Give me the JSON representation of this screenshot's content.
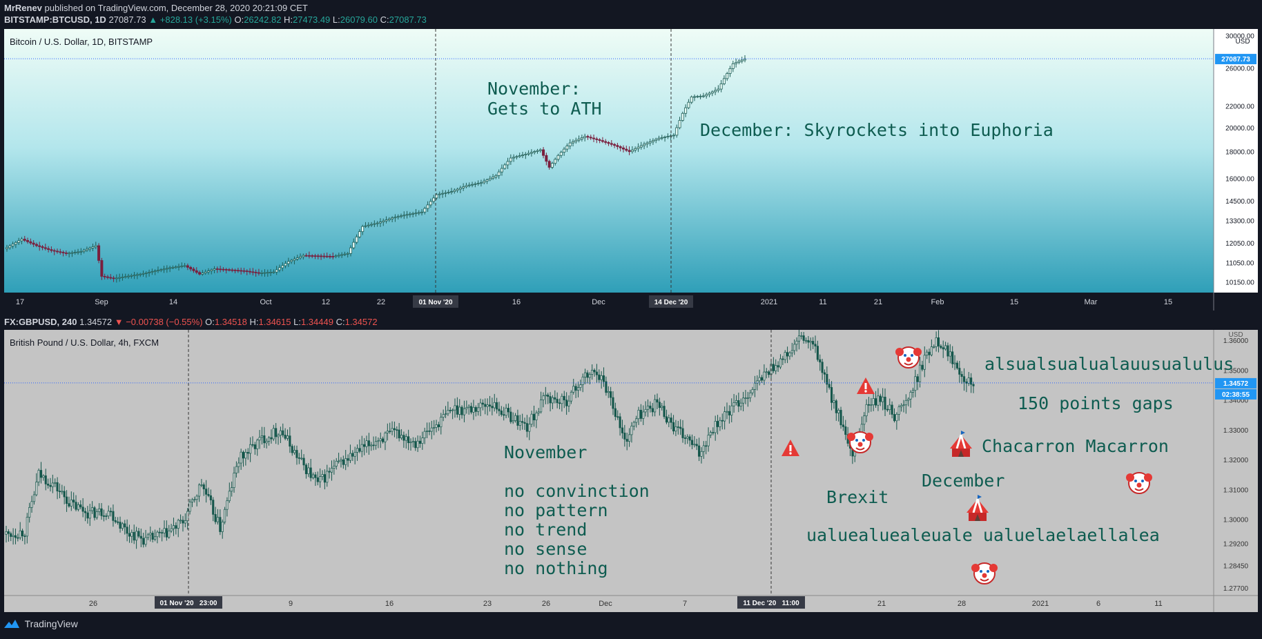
{
  "publisher": {
    "name": "MrRenev",
    "text": "published on TradingView.com, December 28, 2020 20:21:09 CET"
  },
  "btc": {
    "symbol": "BITSTAMP:BTCUSD, 1D",
    "price": "27087.73",
    "change": "▲ +828.13 (+3.15%)",
    "ohlc": {
      "o": "26242.82",
      "h": "27473.49",
      "l": "26079.60",
      "c": "27087.73"
    },
    "title": "Bitcoin / U.S. Dollar, 1D, BITSTAMP",
    "currency": "USD",
    "last_price_label": "27087.73",
    "annotations": [
      "November:",
      "Gets to ATH",
      "December: Skyrockets into Euphoria"
    ],
    "crosshair_labels": [
      "01 Nov '20",
      "14 Dec '20"
    ]
  },
  "gbp": {
    "symbol": "FX:GBPUSD, 240",
    "price": "1.34572",
    "change": "▼ −0.00738 (−0.55%)",
    "ohlc": {
      "o": "1.34518",
      "h": "1.34615",
      "l": "1.34449",
      "c": "1.34572"
    },
    "title": "British Pound / U.S. Dollar, 4h, FXCM",
    "currency": "USD",
    "last_price_label": "1.34572",
    "countdown_label": "02:38:55",
    "annotations": [
      "alsualsualualauusualulus",
      "150 points gaps",
      "Chacarron Macarron",
      "December",
      "Brexit",
      "ualuealuealeuale ualuelaelaellalea",
      "November",
      "no convinction",
      "no pattern",
      "no trend",
      "no sense",
      "no nothing"
    ],
    "crosshair_labels": [
      "01 Nov '20   23:00",
      "11 Dec '20   11:00"
    ]
  },
  "branding": "TradingView",
  "colors": {
    "up": "#26a69a",
    "down": "#ef5350",
    "btc_candle_up": "#1e5c55",
    "btc_candle_down": "#7a1f3d",
    "gbp_candle": "#14564b",
    "annotation": "#0e5c50"
  },
  "chart_data": [
    {
      "type": "candlestick",
      "title": "Bitcoin / U.S. Dollar, 1D, BITSTAMP",
      "y_scale": "log",
      "ylim": [
        9800,
        30500
      ],
      "y_ticks": [
        10150,
        11050,
        12050,
        13300,
        14500,
        16000,
        18000,
        20000,
        22000,
        26000,
        30000
      ],
      "y_tick_labels": [
        "10150.00",
        "11050.00",
        "12050.00",
        "13300.00",
        "14500.00",
        "16000.00",
        "18000.00",
        "20000.00",
        "22000.00",
        "26000.00",
        "30000.00"
      ],
      "x_tick_labels": [
        "17",
        "Sep",
        "14",
        "Oct",
        "12",
        "22",
        "16",
        "Dec",
        "2021",
        "11",
        "21",
        "Feb",
        "15",
        "Mar",
        "15"
      ],
      "close_path": [
        [
          0,
          11800
        ],
        [
          5,
          12250
        ],
        [
          10,
          11900
        ],
        [
          15,
          11650
        ],
        [
          20,
          11500
        ],
        [
          25,
          11600
        ],
        [
          30,
          11900
        ],
        [
          32,
          10400
        ],
        [
          36,
          10300
        ],
        [
          45,
          10500
        ],
        [
          55,
          10800
        ],
        [
          60,
          10900
        ],
        [
          65,
          10500
        ],
        [
          70,
          10750
        ],
        [
          80,
          10650
        ],
        [
          85,
          10550
        ],
        [
          90,
          10600
        ],
        [
          95,
          11100
        ],
        [
          100,
          11400
        ],
        [
          110,
          11350
        ],
        [
          115,
          11500
        ],
        [
          120,
          12950
        ],
        [
          125,
          13150
        ],
        [
          130,
          13450
        ],
        [
          135,
          13650
        ],
        [
          140,
          13800
        ],
        [
          145,
          14900
        ],
        [
          150,
          15100
        ],
        [
          155,
          15500
        ],
        [
          160,
          15700
        ],
        [
          165,
          16200
        ],
        [
          170,
          17500
        ],
        [
          175,
          17800
        ],
        [
          180,
          18150
        ],
        [
          183,
          16800
        ],
        [
          186,
          17700
        ],
        [
          190,
          18700
        ],
        [
          195,
          19250
        ],
        [
          200,
          18900
        ],
        [
          205,
          18500
        ],
        [
          210,
          18000
        ],
        [
          215,
          18600
        ],
        [
          220,
          19100
        ],
        [
          225,
          19350
        ],
        [
          228,
          21300
        ],
        [
          231,
          22900
        ],
        [
          235,
          23000
        ],
        [
          240,
          23700
        ],
        [
          245,
          26500
        ],
        [
          249,
          27087.73
        ]
      ],
      "last": 27087.73,
      "annotations": [
        "November: Gets to ATH",
        "December: Skyrockets into Euphoria"
      ]
    },
    {
      "type": "candlestick",
      "title": "British Pound / U.S. Dollar, 4h, FXCM",
      "ylim": [
        1.2745,
        1.3635
      ],
      "y_ticks": [
        1.277,
        1.2845,
        1.292,
        1.3,
        1.31,
        1.32,
        1.33,
        1.34,
        1.35,
        1.36
      ],
      "y_tick_labels": [
        "1.27700",
        "1.28450",
        "1.29200",
        "1.30000",
        "1.31000",
        "1.32000",
        "1.33000",
        "1.34000",
        "1.35000",
        "1.36000"
      ],
      "x_tick_labels": [
        "26",
        "9",
        "16",
        "23",
        "26",
        "Dec",
        "7",
        "21",
        "28",
        "2021",
        "6",
        "11"
      ],
      "close_path": [
        [
          0,
          1.295
        ],
        [
          8,
          1.296
        ],
        [
          14,
          1.315
        ],
        [
          20,
          1.312
        ],
        [
          28,
          1.305
        ],
        [
          36,
          1.302
        ],
        [
          44,
          1.303
        ],
        [
          52,
          1.296
        ],
        [
          60,
          1.293
        ],
        [
          68,
          1.295
        ],
        [
          76,
          1.299
        ],
        [
          84,
          1.312
        ],
        [
          92,
          1.297
        ],
        [
          100,
          1.32
        ],
        [
          110,
          1.327
        ],
        [
          118,
          1.33
        ],
        [
          126,
          1.32
        ],
        [
          134,
          1.312
        ],
        [
          142,
          1.318
        ],
        [
          150,
          1.322
        ],
        [
          160,
          1.327
        ],
        [
          168,
          1.329
        ],
        [
          176,
          1.326
        ],
        [
          184,
          1.331
        ],
        [
          192,
          1.337
        ],
        [
          200,
          1.337
        ],
        [
          208,
          1.339
        ],
        [
          216,
          1.335
        ],
        [
          224,
          1.331
        ],
        [
          232,
          1.341
        ],
        [
          240,
          1.339
        ],
        [
          248,
          1.347
        ],
        [
          254,
          1.35
        ],
        [
          260,
          1.341
        ],
        [
          266,
          1.326
        ],
        [
          272,
          1.335
        ],
        [
          280,
          1.339
        ],
        [
          288,
          1.33
        ],
        [
          294,
          1.326
        ],
        [
          298,
          1.322
        ],
        [
          304,
          1.331
        ],
        [
          312,
          1.337
        ],
        [
          320,
          1.343
        ],
        [
          328,
          1.35
        ],
        [
          336,
          1.355
        ],
        [
          342,
          1.361
        ],
        [
          348,
          1.357
        ],
        [
          352,
          1.347
        ],
        [
          358,
          1.335
        ],
        [
          364,
          1.32
        ],
        [
          370,
          1.338
        ],
        [
          376,
          1.34
        ],
        [
          382,
          1.335
        ],
        [
          388,
          1.34
        ],
        [
          394,
          1.352
        ],
        [
          400,
          1.361
        ],
        [
          406,
          1.355
        ],
        [
          412,
          1.348
        ],
        [
          416,
          1.34572
        ]
      ],
      "last": 1.34572,
      "annotations": [
        "November",
        "no convinction",
        "no pattern",
        "no trend",
        "no sense",
        "no nothing",
        "Brexit",
        "December",
        "alsualsualualauusualulus",
        "150 points gaps",
        "Chacarron Macarron",
        "ualuealuealeuale ualuelaelaellalea"
      ]
    }
  ]
}
